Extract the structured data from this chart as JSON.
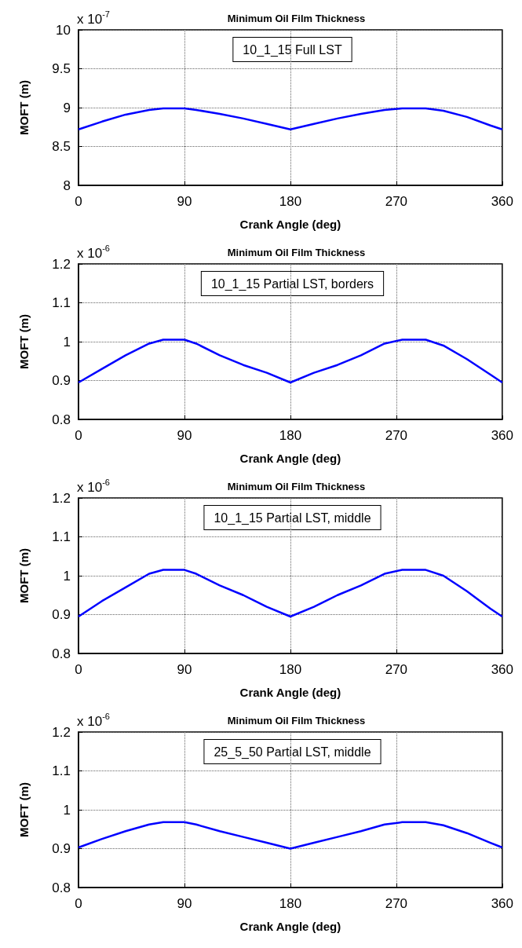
{
  "chart_data": [
    {
      "type": "line",
      "title": "Minimum Oil Film Thickness",
      "xlabel": "Crank Angle (deg)",
      "ylabel": "MOFT (m)",
      "annotations": [
        "x 10$^{-7}$",
        "10_1_15 Full LST"
      ],
      "xlim": [
        0,
        360
      ],
      "xticks": [
        0,
        90,
        180,
        270,
        360
      ],
      "ylim": [
        8,
        10
      ],
      "yticks": [
        8,
        8.5,
        9,
        9.5,
        10
      ],
      "grid": true,
      "series": [
        {
          "color": "#0000ff",
          "x": [
            0,
            20,
            40,
            60,
            72,
            90,
            100,
            120,
            140,
            160,
            180,
            200,
            220,
            240,
            260,
            275,
            295,
            310,
            330,
            350,
            360
          ],
          "values": [
            8.72,
            8.82,
            8.91,
            8.97,
            8.99,
            8.99,
            8.97,
            8.92,
            8.86,
            8.79,
            8.72,
            8.79,
            8.86,
            8.92,
            8.97,
            8.99,
            8.99,
            8.96,
            8.88,
            8.77,
            8.72
          ]
        }
      ]
    },
    {
      "type": "line",
      "title": "Minimum Oil Film Thickness",
      "xlabel": "Crank Angle (deg)",
      "ylabel": "MOFT (m)",
      "annotations": [
        "x 10$^{-6}$",
        "10_1_15 Partial LST, borders"
      ],
      "xlim": [
        0,
        360
      ],
      "xticks": [
        0,
        90,
        180,
        270,
        360
      ],
      "ylim": [
        0.8,
        1.2
      ],
      "yticks": [
        0.8,
        0.9,
        1,
        1.1,
        1.2
      ],
      "grid": true,
      "series": [
        {
          "color": "#0000ff",
          "x": [
            0,
            20,
            40,
            60,
            72,
            90,
            100,
            120,
            140,
            160,
            180,
            200,
            220,
            240,
            260,
            275,
            295,
            310,
            330,
            350,
            360
          ],
          "values": [
            0.895,
            0.93,
            0.965,
            0.995,
            1.005,
            1.005,
            0.995,
            0.965,
            0.94,
            0.92,
            0.895,
            0.92,
            0.94,
            0.965,
            0.995,
            1.005,
            1.005,
            0.99,
            0.955,
            0.915,
            0.895
          ]
        }
      ]
    },
    {
      "type": "line",
      "title": "Minimum Oil Film Thickness",
      "xlabel": "Crank Angle (deg)",
      "ylabel": "MOFT (m)",
      "annotations": [
        "x 10$^{-6}$",
        "10_1_15 Partial LST, middle"
      ],
      "xlim": [
        0,
        360
      ],
      "xticks": [
        0,
        90,
        180,
        270,
        360
      ],
      "ylim": [
        0.8,
        1.2
      ],
      "yticks": [
        0.8,
        0.9,
        1,
        1.1,
        1.2
      ],
      "grid": true,
      "series": [
        {
          "color": "#0000ff",
          "x": [
            0,
            20,
            40,
            60,
            72,
            90,
            100,
            120,
            140,
            160,
            180,
            200,
            220,
            240,
            260,
            275,
            295,
            310,
            330,
            350,
            360
          ],
          "values": [
            0.895,
            0.935,
            0.97,
            1.005,
            1.015,
            1.015,
            1.005,
            0.975,
            0.95,
            0.92,
            0.895,
            0.92,
            0.95,
            0.975,
            1.005,
            1.015,
            1.015,
            1.0,
            0.96,
            0.915,
            0.895
          ]
        }
      ]
    },
    {
      "type": "line",
      "title": "Minimum Oil Film Thickness",
      "xlabel": "Crank Angle (deg)",
      "ylabel": "MOFT (m)",
      "annotations": [
        "x 10$^{-6}$",
        "25_5_50 Partial LST, middle"
      ],
      "xlim": [
        0,
        360
      ],
      "xticks": [
        0,
        90,
        180,
        270,
        360
      ],
      "ylim": [
        0.8,
        1.2
      ],
      "yticks": [
        0.8,
        0.9,
        1,
        1.1,
        1.2
      ],
      "grid": true,
      "series": [
        {
          "color": "#0000ff",
          "x": [
            0,
            20,
            40,
            60,
            72,
            90,
            100,
            120,
            140,
            160,
            180,
            200,
            220,
            240,
            260,
            275,
            295,
            310,
            330,
            350,
            360
          ],
          "values": [
            0.903,
            0.925,
            0.945,
            0.962,
            0.968,
            0.968,
            0.962,
            0.945,
            0.93,
            0.915,
            0.9,
            0.915,
            0.93,
            0.945,
            0.962,
            0.968,
            0.968,
            0.96,
            0.94,
            0.915,
            0.903
          ]
        }
      ]
    }
  ]
}
